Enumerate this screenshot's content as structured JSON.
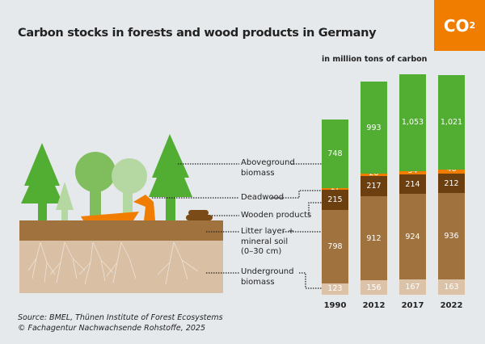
{
  "title": "Carbon stocks in forests and wood products in Germany",
  "badge": {
    "text": "CO",
    "sub": "2"
  },
  "unit_label": "in million tons of carbon",
  "legend_labels": {
    "aboveground": [
      "Aboveground",
      "biomass"
    ],
    "deadwood": "Deadwood",
    "wooden": "Wooden products",
    "litter": [
      "Litter layer +",
      "mineral soil",
      "(0–30 cm)"
    ],
    "underground": [
      "Underground",
      "biomass"
    ]
  },
  "source": [
    "Source: BMEL, Thünen Institute of Forest Ecosystems",
    "© Fachagentur Nachwachsende Rohstoffe, 2025"
  ],
  "chart_data": {
    "type": "bar",
    "stacked": true,
    "title": "Carbon stocks in forests and wood products in Germany",
    "ylabel": "in million tons of carbon",
    "categories": [
      "1990",
      "2012",
      "2017",
      "2022"
    ],
    "series": [
      {
        "name": "Underground biomass",
        "color": "#dcc2a6",
        "values": [
          123,
          156,
          167,
          163
        ],
        "labels": [
          "123",
          "156",
          "167",
          "163"
        ]
      },
      {
        "name": "Litter layer + mineral soil (0–30 cm)",
        "color": "#a0723e",
        "values": [
          798,
          912,
          924,
          936
        ],
        "labels": [
          "798",
          "912",
          "924",
          "936"
        ]
      },
      {
        "name": "Wooden products",
        "color": "#6b3f0f",
        "values": [
          215,
          217,
          214,
          212
        ],
        "labels": [
          "215",
          "217",
          "214",
          "212"
        ]
      },
      {
        "name": "Deadwood",
        "color": "#f07d00",
        "values": [
          17,
          28,
          34,
          46
        ],
        "labels": [
          "17",
          "28",
          "34",
          "46"
        ]
      },
      {
        "name": "Aboveground biomass",
        "color": "#52ae32",
        "values": [
          748,
          993,
          1053,
          1021
        ],
        "labels": [
          "748",
          "993",
          "1,053",
          "1,021"
        ]
      }
    ]
  }
}
